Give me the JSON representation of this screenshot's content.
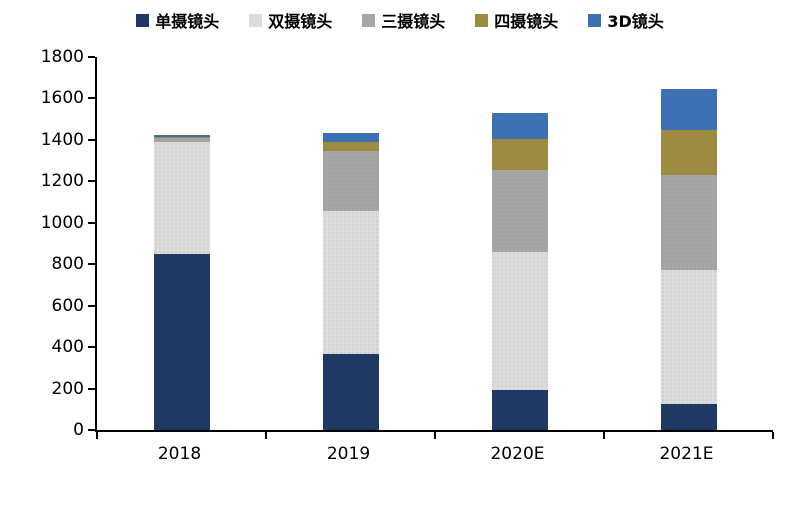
{
  "chart_data": {
    "type": "bar",
    "stacked": true,
    "title": "",
    "xlabel": "",
    "ylabel": "",
    "categories": [
      "2018",
      "2019",
      "2020E",
      "2021E"
    ],
    "series": [
      {
        "name": "单摄镜头",
        "color": "#1F3864",
        "pattern": "solid",
        "values": [
          850,
          365,
          195,
          125
        ]
      },
      {
        "name": "双摄镜头",
        "color": "#DCDCDC",
        "pattern": "dots",
        "values": [
          540,
          690,
          665,
          645
        ]
      },
      {
        "name": "三摄镜头",
        "color": "#A6A6A6",
        "pattern": "dots",
        "values": [
          20,
          290,
          395,
          460
        ]
      },
      {
        "name": "四摄镜头",
        "color": "#9E8B42",
        "pattern": "solid",
        "values": [
          5,
          45,
          150,
          220
        ]
      },
      {
        "name": "3D镜头",
        "color": "#3C72B4",
        "pattern": "solid",
        "values": [
          10,
          45,
          125,
          195
        ]
      }
    ],
    "totals": [
      1425,
      1435,
      1530,
      1645
    ],
    "ylim": [
      0,
      1800
    ],
    "ytick_step": 200,
    "ytick_labels": [
      "0",
      "200",
      "400",
      "600",
      "800",
      "1000",
      "1200",
      "1400",
      "1600",
      "1800"
    ],
    "grid": false,
    "legend_position": "top",
    "axis_color": "#000000",
    "background_color": "#FFFFFF"
  }
}
